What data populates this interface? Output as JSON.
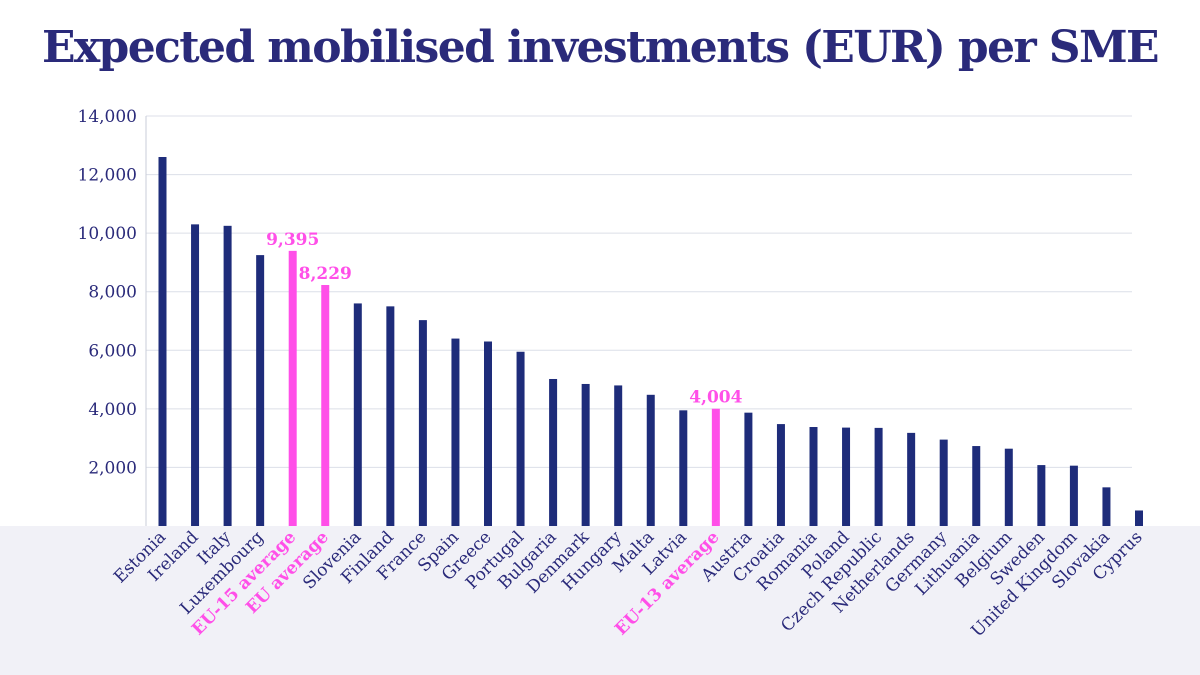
{
  "chart_data": {
    "type": "bar",
    "title": "Expected mobilised investments (EUR) per SME",
    "xlabel": "",
    "ylabel": "",
    "ylim": [
      0,
      14000
    ],
    "yticks": [
      2000,
      4000,
      6000,
      8000,
      10000,
      12000,
      14000
    ],
    "ytick_labels": [
      "2,000",
      "4,000",
      "6,000",
      "8,000",
      "10,000",
      "12,000",
      "14,000"
    ],
    "grid": true,
    "colors": {
      "bar": "#1e2c7a",
      "highlight": "#ff4fe8",
      "grid": "#dcdfe8",
      "axis_text": "#2a2a7a"
    },
    "categories": [
      "Estonia",
      "Ireland",
      "Italy",
      "Luxembourg",
      "EU-15 average",
      "EU average",
      "Slovenia",
      "Finland",
      "France",
      "Spain",
      "Greece",
      "Portugal",
      "Bulgaria",
      "Denmark",
      "Hungary",
      "Malta",
      "Latvia",
      "EU-13 average",
      "Austria",
      "Croatia",
      "Romania",
      "Poland",
      "Czech Republic",
      "Netherlands",
      "Germany",
      "Lithuania",
      "Belgium",
      "Sweden",
      "United Kingdom",
      "Slovakia",
      "Cyprus"
    ],
    "values": [
      12600,
      10300,
      10250,
      9250,
      9395,
      8229,
      7600,
      7500,
      7030,
      6400,
      6300,
      5950,
      5020,
      4850,
      4800,
      4480,
      3950,
      4004,
      3870,
      3480,
      3380,
      3360,
      3350,
      3180,
      2950,
      2730,
      2640,
      2080,
      2060,
      1320,
      530
    ],
    "highlighted": [
      false,
      false,
      false,
      false,
      true,
      true,
      false,
      false,
      false,
      false,
      false,
      false,
      false,
      false,
      false,
      false,
      false,
      true,
      false,
      false,
      false,
      false,
      false,
      false,
      false,
      false,
      false,
      false,
      false,
      false,
      false
    ],
    "data_labels": [
      {
        "category": "EU-15 average",
        "text": "9,395"
      },
      {
        "category": "EU average",
        "text": "8,229"
      },
      {
        "category": "EU-13 average",
        "text": "4,004"
      }
    ]
  }
}
